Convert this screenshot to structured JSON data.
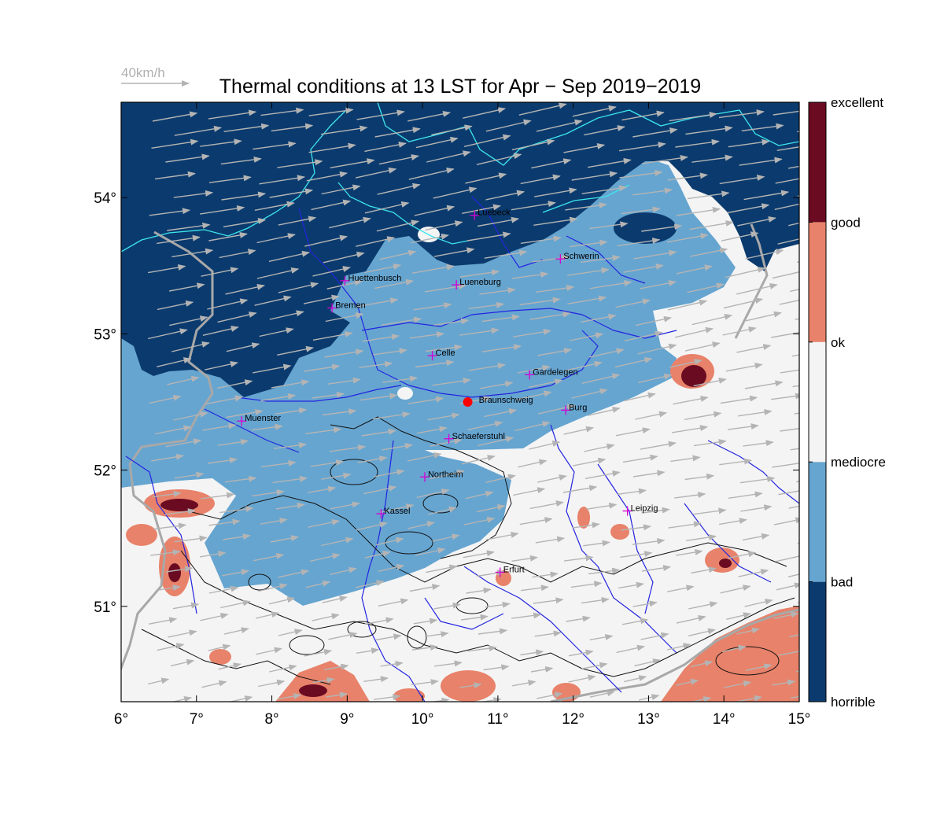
{
  "title": "Thermal conditions at 13 LST for Apr − Sep  2019−2019",
  "reference_vector": {
    "label": "40km/h",
    "speed_kmh": 40
  },
  "extent": {
    "lon": [
      6,
      15
    ],
    "lat": [
      50.3,
      54.7
    ]
  },
  "x_ticks": [
    {
      "value": 6,
      "label": "6°"
    },
    {
      "value": 7,
      "label": "7°"
    },
    {
      "value": 8,
      "label": "8°"
    },
    {
      "value": 9,
      "label": "9°"
    },
    {
      "value": 10,
      "label": "10°"
    },
    {
      "value": 11,
      "label": "11°"
    },
    {
      "value": 12,
      "label": "12°"
    },
    {
      "value": 13,
      "label": "13°"
    },
    {
      "value": 14,
      "label": "14°"
    },
    {
      "value": 15,
      "label": "15°"
    }
  ],
  "y_ticks": [
    {
      "value": 51,
      "label": "51°"
    },
    {
      "value": 52,
      "label": "52°"
    },
    {
      "value": 53,
      "label": "53°"
    },
    {
      "value": 54,
      "label": "54°"
    }
  ],
  "colorbar": {
    "colors": [
      "#0b3b6e",
      "#66a5d0",
      "#f4f4f4",
      "#e8826a",
      "#6a0b22"
    ],
    "labels": [
      "horrible",
      "bad",
      "mediocre",
      "ok",
      "good",
      "excellent"
    ]
  },
  "cities": [
    {
      "name": "Luebeck",
      "lon": 10.69,
      "lat": 53.87
    },
    {
      "name": "Schwerin",
      "lon": 11.83,
      "lat": 53.55
    },
    {
      "name": "Huettenbusch",
      "lon": 8.97,
      "lat": 53.39
    },
    {
      "name": "Lueneburg",
      "lon": 10.45,
      "lat": 53.36
    },
    {
      "name": "Bremen",
      "lon": 8.8,
      "lat": 53.19
    },
    {
      "name": "Celle",
      "lon": 10.13,
      "lat": 52.84
    },
    {
      "name": "Gardelegen",
      "lon": 11.42,
      "lat": 52.7
    },
    {
      "name": "Braunschweig",
      "lon": 10.6,
      "lat": 52.5,
      "marker": "dot"
    },
    {
      "name": "Burg",
      "lon": 11.9,
      "lat": 52.44
    },
    {
      "name": "Muenster",
      "lon": 7.6,
      "lat": 52.36
    },
    {
      "name": "Schaeferstuhl",
      "lon": 10.35,
      "lat": 52.23
    },
    {
      "name": "Northeim",
      "lon": 10.03,
      "lat": 51.95
    },
    {
      "name": "Leipzig",
      "lon": 12.72,
      "lat": 51.7
    },
    {
      "name": "Kassel",
      "lon": 9.45,
      "lat": 51.68
    },
    {
      "name": "Erfurt",
      "lon": 11.03,
      "lat": 51.25
    }
  ]
}
